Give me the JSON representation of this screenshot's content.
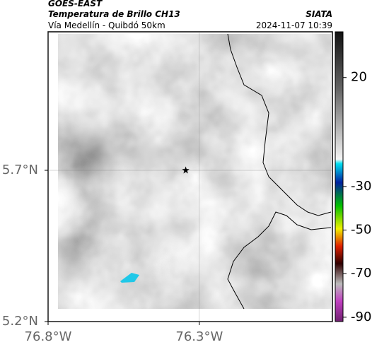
{
  "header": {
    "title": "GOES-EAST",
    "subtitle": "Temperatura de Brillo CH13",
    "source": "SIATA",
    "region": "Vía Medellín - Quibdó 50km",
    "timestamp": "2024-11-07 10:39"
  },
  "map": {
    "xlim": [
      -76.8,
      -75.86
    ],
    "ylim": [
      5.2,
      6.158
    ],
    "xticks": [
      {
        "value": -76.8,
        "label": "76.8°W"
      },
      {
        "value": -76.3,
        "label": "76.3°W"
      }
    ],
    "yticks": [
      {
        "value": 5.2,
        "label": "5.2°N"
      },
      {
        "value": 5.7,
        "label": "5.7°N"
      }
    ],
    "grid": true,
    "marker": {
      "lon": -76.345,
      "lat": 5.7
    }
  },
  "colorbar": {
    "clim": [
      41,
      -92
    ],
    "ticks": [
      20,
      -30,
      -50,
      -70,
      -90
    ]
  }
}
